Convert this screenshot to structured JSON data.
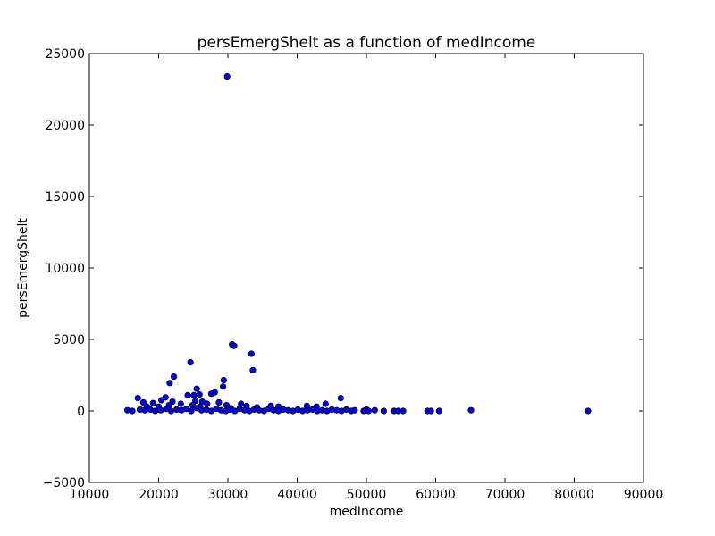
{
  "chart_data": {
    "type": "scatter",
    "title": "persEmergShelt as a function of medIncome",
    "xlabel": "medIncome",
    "ylabel": "persEmergShelt",
    "xlim": [
      10000,
      90000
    ],
    "ylim": [
      -5000,
      25000
    ],
    "xticks": [
      10000,
      20000,
      30000,
      40000,
      50000,
      60000,
      70000,
      80000,
      90000
    ],
    "yticks": [
      -5000,
      0,
      5000,
      10000,
      15000,
      20000,
      25000
    ],
    "grid": false,
    "legend": "none",
    "marker_color": "#0000ff",
    "marker_edge": "#000000",
    "points": [
      [
        29900,
        23400
      ],
      [
        30600,
        4650
      ],
      [
        30900,
        4550
      ],
      [
        33400,
        4000
      ],
      [
        33600,
        2850
      ],
      [
        24600,
        3400
      ],
      [
        22200,
        2400
      ],
      [
        21600,
        1950
      ],
      [
        29400,
        2150
      ],
      [
        29300,
        1700
      ],
      [
        25500,
        1550
      ],
      [
        28100,
        1300
      ],
      [
        27600,
        1200
      ],
      [
        25900,
        1150
      ],
      [
        25100,
        1100
      ],
      [
        24200,
        1100
      ],
      [
        21000,
        950
      ],
      [
        17000,
        900
      ],
      [
        46300,
        900
      ],
      [
        20400,
        750
      ],
      [
        22000,
        650
      ],
      [
        25300,
        700
      ],
      [
        26300,
        650
      ],
      [
        28700,
        600
      ],
      [
        17800,
        600
      ],
      [
        19200,
        550
      ],
      [
        23200,
        500
      ],
      [
        24900,
        400
      ],
      [
        27000,
        500
      ],
      [
        29800,
        400
      ],
      [
        31900,
        500
      ],
      [
        32700,
        350
      ],
      [
        36200,
        350
      ],
      [
        37300,
        300
      ],
      [
        41400,
        350
      ],
      [
        42800,
        300
      ],
      [
        44100,
        500
      ],
      [
        18300,
        300
      ],
      [
        20000,
        300
      ],
      [
        21500,
        400
      ],
      [
        26000,
        300
      ],
      [
        30400,
        200
      ],
      [
        34200,
        250
      ],
      [
        15500,
        50
      ],
      [
        16200,
        0
      ],
      [
        17300,
        100
      ],
      [
        18000,
        50
      ],
      [
        18800,
        100
      ],
      [
        19500,
        0
      ],
      [
        20300,
        50
      ],
      [
        21100,
        150
      ],
      [
        21800,
        0
      ],
      [
        22600,
        100
      ],
      [
        23300,
        50
      ],
      [
        24000,
        150
      ],
      [
        24700,
        0
      ],
      [
        25500,
        200
      ],
      [
        26200,
        50
      ],
      [
        26900,
        100
      ],
      [
        27600,
        0
      ],
      [
        28300,
        150
      ],
      [
        29000,
        50
      ],
      [
        29700,
        0
      ],
      [
        30300,
        100
      ],
      [
        31000,
        0
      ],
      [
        31700,
        150
      ],
      [
        32400,
        50
      ],
      [
        33100,
        0
      ],
      [
        33800,
        100
      ],
      [
        34500,
        50
      ],
      [
        35200,
        0
      ],
      [
        35900,
        150
      ],
      [
        36600,
        50
      ],
      [
        37300,
        0
      ],
      [
        38000,
        100
      ],
      [
        38700,
        50
      ],
      [
        39400,
        0
      ],
      [
        40100,
        100
      ],
      [
        40800,
        0
      ],
      [
        41500,
        50
      ],
      [
        42200,
        100
      ],
      [
        42900,
        0
      ],
      [
        43600,
        50
      ],
      [
        44300,
        0
      ],
      [
        45000,
        100
      ],
      [
        45700,
        50
      ],
      [
        46400,
        0
      ],
      [
        47100,
        100
      ],
      [
        47800,
        0
      ],
      [
        48300,
        50
      ],
      [
        49600,
        0
      ],
      [
        50000,
        100
      ],
      [
        50300,
        0
      ],
      [
        51200,
        50
      ],
      [
        52500,
        0
      ],
      [
        54000,
        0
      ],
      [
        54600,
        0
      ],
      [
        55300,
        0
      ],
      [
        58800,
        0
      ],
      [
        59300,
        0
      ],
      [
        60500,
        0
      ],
      [
        65100,
        50
      ],
      [
        82000,
        0
      ]
    ]
  }
}
